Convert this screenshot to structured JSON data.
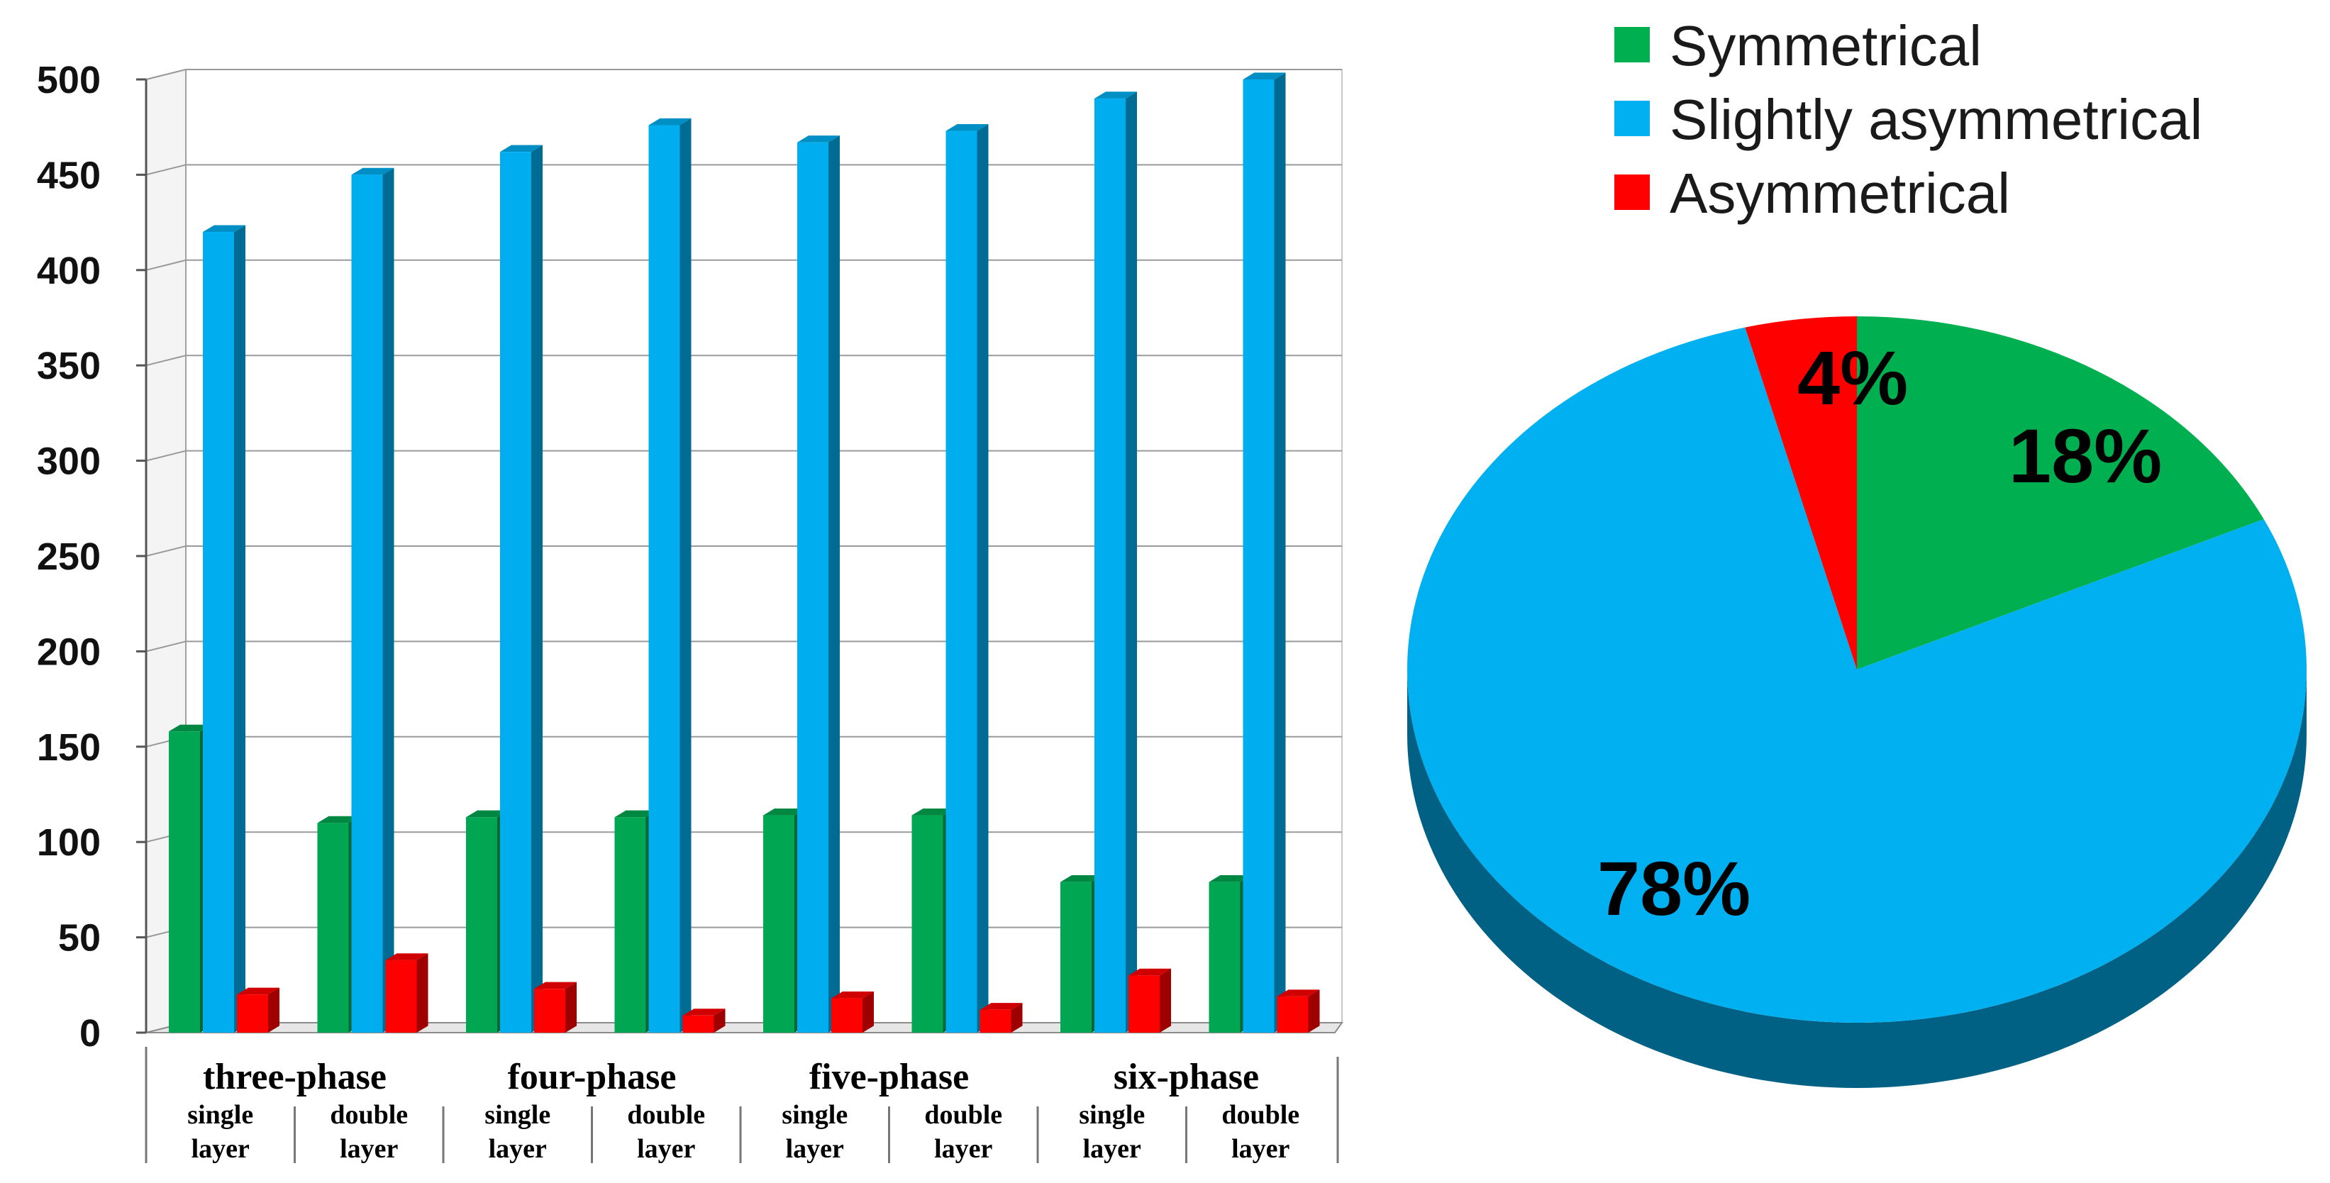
{
  "chart_data": [
    {
      "type": "bar",
      "title": "",
      "xlabel": "",
      "ylabel": "",
      "ylim": [
        0,
        500
      ],
      "yticks": [
        0,
        50,
        100,
        150,
        200,
        250,
        300,
        350,
        400,
        450,
        500
      ],
      "grid": true,
      "style": "3d",
      "groups": [
        {
          "label": "three-phase",
          "subs": [
            "single layer",
            "double layer"
          ]
        },
        {
          "label": "four-phase",
          "subs": [
            "single layer",
            "double layer"
          ]
        },
        {
          "label": "five-phase",
          "subs": [
            "single layer",
            "double layer"
          ]
        },
        {
          "label": "six-phase",
          "subs": [
            "single layer",
            "double layer"
          ]
        }
      ],
      "series": [
        {
          "name": "Symmetrical",
          "color": "#00a651",
          "values": [
            158,
            110,
            113,
            113,
            114,
            114,
            79,
            79
          ]
        },
        {
          "name": "Slightly asymmetrical",
          "color": "#00aeef",
          "values": [
            420,
            450,
            462,
            476,
            467,
            473,
            490,
            500
          ]
        },
        {
          "name": "Asymmetrical",
          "color": "#ff0000",
          "values": [
            20,
            38,
            23,
            9,
            18,
            12,
            30,
            19
          ]
        }
      ]
    },
    {
      "type": "pie",
      "style": "3d",
      "legend_position": "top",
      "slices": [
        {
          "name": "Symmetrical",
          "value": 18,
          "label": "18%",
          "color": "#00b050"
        },
        {
          "name": "Slightly asymmetrical",
          "value": 78,
          "label": "78%",
          "color": "#00b0f0"
        },
        {
          "name": "Asymmetrical",
          "value": 4,
          "label": "4%",
          "color": "#ff0000"
        }
      ]
    }
  ]
}
